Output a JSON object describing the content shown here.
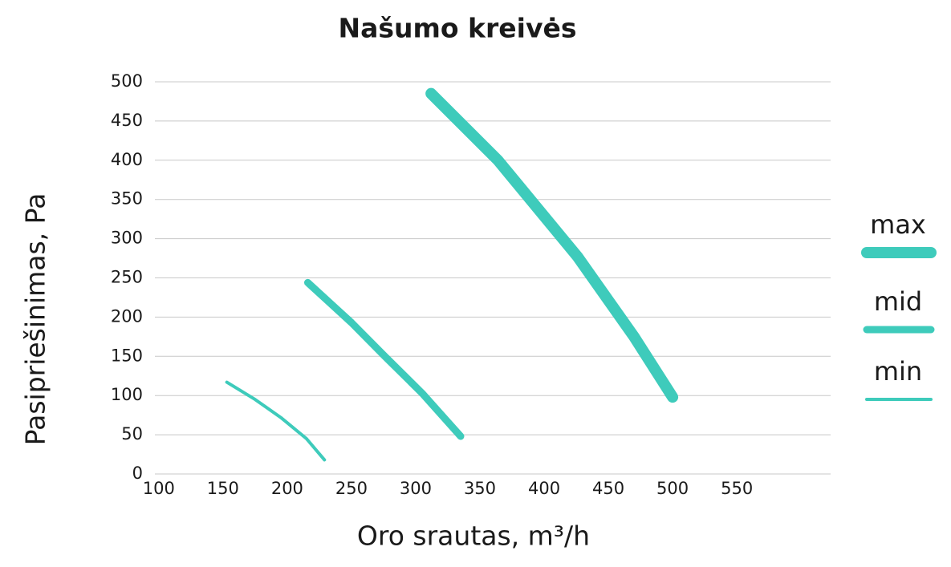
{
  "chart_data": {
    "type": "line",
    "title": "Našumo kreivės",
    "x_label": "Oro srautas, m³/h",
    "y_label": "Pasipriešinimas, Pa",
    "xlim": [
      97,
      623
    ],
    "xticks": [
      100,
      150,
      200,
      250,
      300,
      350,
      400,
      450,
      500,
      550
    ],
    "ylim": [
      0,
      500
    ],
    "yticks": [
      0,
      50,
      100,
      150,
      200,
      250,
      300,
      350,
      400,
      450,
      500
    ],
    "grid": true,
    "legend": "right",
    "series": [
      {
        "name": "max",
        "color": "#3ecbbb",
        "line_width": 14,
        "x": [
          312,
          364,
          426,
          470,
          500
        ],
        "values": [
          485,
          400,
          277,
          175,
          98
        ]
      },
      {
        "name": "mid",
        "color": "#3ecbbb",
        "line_width": 9,
        "x": [
          216,
          250,
          276,
          305,
          335
        ],
        "values": [
          244,
          193,
          150,
          103,
          48
        ]
      },
      {
        "name": "min",
        "color": "#3ecbbb",
        "line_width": 4,
        "x": [
          153,
          175,
          195,
          215,
          229
        ],
        "values": [
          117,
          95,
          72,
          45,
          18
        ]
      }
    ]
  }
}
